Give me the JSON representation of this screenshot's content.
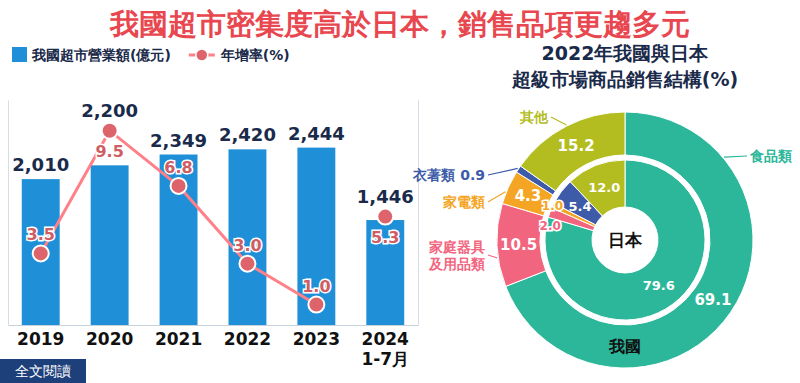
{
  "title": "我國超市密集度高於日本，銷售品項更趨多元",
  "link": "全文閱讀",
  "chart_data": [
    {
      "type": "bar",
      "categories": [
        "2019",
        "2020",
        "2021",
        "2022",
        "2023",
        "2024\n1-7月"
      ],
      "series": [
        {
          "name": "我國超市營業額(億元)",
          "type": "bar",
          "color": "#1f8fd8",
          "values": [
            2010,
            2200,
            2349,
            2420,
            2444,
            1446
          ],
          "value_labels": [
            "2,010",
            "2,200",
            "2,349",
            "2,420",
            "2,444",
            "1,446"
          ]
        },
        {
          "name": "年增率(%)",
          "type": "line",
          "axis": "y2",
          "color": "#ee6b73",
          "marker": "circle",
          "line_style": "solid",
          "values": [
            3.5,
            9.5,
            6.8,
            3.0,
            1.0,
            null
          ],
          "value_labels": [
            "3.5",
            "9.5",
            "6.8",
            "3.0",
            "1.0",
            null
          ]
        },
        {
          "type": "line",
          "axis": "y2",
          "color": "#ee6b73",
          "marker": "circle",
          "line_style": "none",
          "values": [
            null,
            null,
            null,
            null,
            null,
            5.3
          ]
        }
      ],
      "ylim": [
        0,
        3100
      ],
      "yticks": [],
      "y2lim": [
        0,
        11
      ],
      "y2ticks": [],
      "data_labels": true,
      "tick_labels": "x",
      "legend": "top-left",
      "grid": false
    },
    {
      "type": "donut",
      "title": "2022年我國與日本\n超級市場商品銷售結構(%)",
      "categories": [
        "食品類",
        "家庭器具\n及用品類",
        "家電類",
        "衣著類",
        "其他"
      ],
      "colors": [
        "#2cb79a",
        "#f2657f",
        "#f5a524",
        "#3d5ba9",
        "#b3bd1f"
      ],
      "series": [
        {
          "name": "我國",
          "values": [
            69.1,
            10.5,
            4.3,
            0.9,
            15.2
          ]
        },
        {
          "name": "日本",
          "values": [
            79.6,
            2.0,
            1.0,
            5.4,
            12.0
          ],
          "value_labels": [
            "79.6",
            "2.0",
            "1.0",
            "5.4",
            "12.0"
          ]
        }
      ],
      "data_labels": true
    }
  ]
}
